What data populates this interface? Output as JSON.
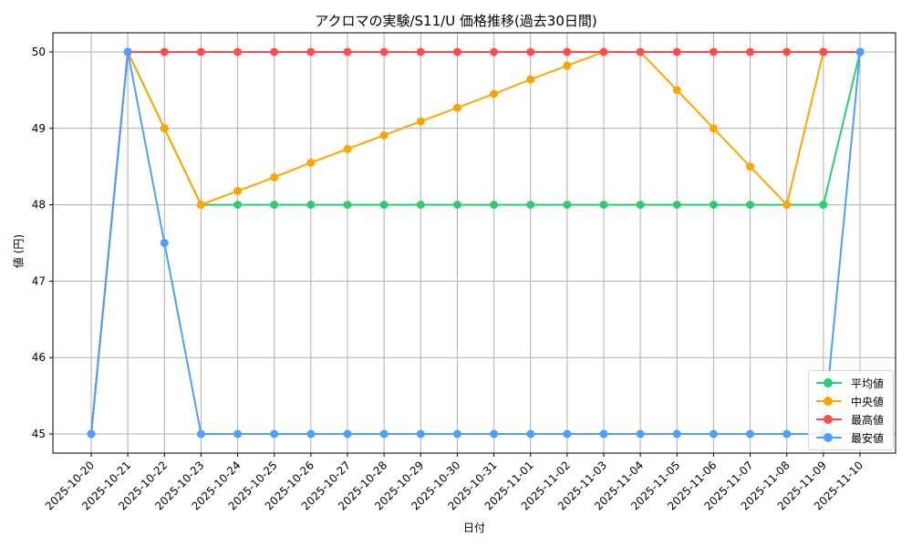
{
  "chart_data": {
    "type": "line",
    "title": "アクロマの実験/S11/U 価格推移(過去30日間)",
    "xlabel": "日付",
    "ylabel": "値 (円)",
    "ylim": [
      44.75,
      50.25
    ],
    "yticks": [
      45,
      46,
      47,
      48,
      49,
      50
    ],
    "grid": true,
    "legend_position": "lower right",
    "x": [
      "2025-10-20",
      "2025-10-21",
      "2025-10-22",
      "2025-10-23",
      "2025-10-24",
      "2025-10-25",
      "2025-10-26",
      "2025-10-27",
      "2025-10-28",
      "2025-10-29",
      "2025-10-30",
      "2025-10-31",
      "2025-11-01",
      "2025-11-02",
      "2025-11-03",
      "2025-11-04",
      "2025-11-05",
      "2025-11-06",
      "2025-11-07",
      "2025-11-08",
      "2025-11-09",
      "2025-11-10"
    ],
    "series": [
      {
        "name": "平均値",
        "color": "#2ecc71",
        "values": [
          45,
          50,
          49,
          48,
          48,
          48,
          48,
          48,
          48,
          48,
          48,
          48,
          48,
          48,
          48,
          48,
          48,
          48,
          48,
          48,
          48,
          50
        ]
      },
      {
        "name": "中央値",
        "color": "#ffa500",
        "values": [
          45,
          50,
          49,
          48,
          48.18,
          48.36,
          48.55,
          48.73,
          48.91,
          49.09,
          49.27,
          49.45,
          49.64,
          49.82,
          50,
          50,
          49.5,
          49,
          48.5,
          48,
          50,
          50
        ]
      },
      {
        "name": "最高値",
        "color": "#ff4d4d",
        "values": [
          45,
          50,
          50,
          50,
          50,
          50,
          50,
          50,
          50,
          50,
          50,
          50,
          50,
          50,
          50,
          50,
          50,
          50,
          50,
          50,
          50,
          50
        ]
      },
      {
        "name": "最安値",
        "color": "#4d9fff",
        "values": [
          45,
          50,
          47.5,
          45,
          45,
          45,
          45,
          45,
          45,
          45,
          45,
          45,
          45,
          45,
          45,
          45,
          45,
          45,
          45,
          45,
          45,
          50
        ]
      }
    ]
  }
}
